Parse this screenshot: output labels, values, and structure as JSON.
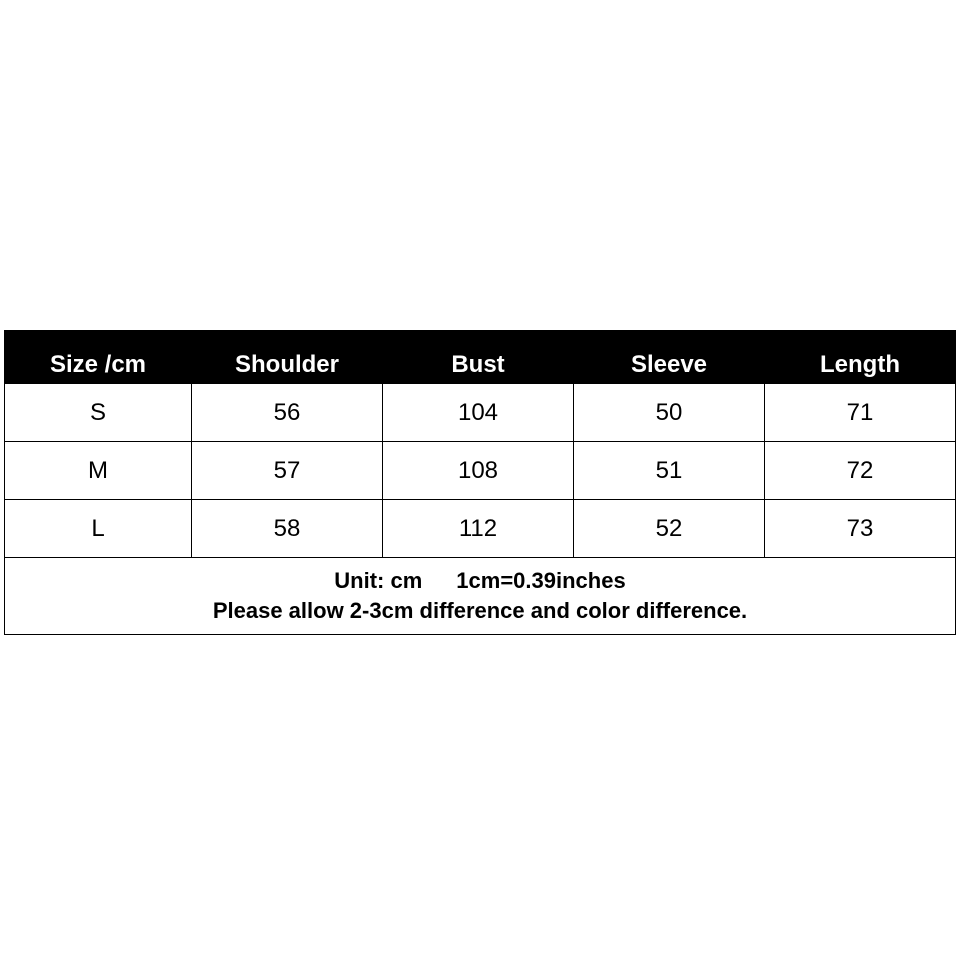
{
  "table": {
    "headers": [
      "Size /cm",
      "Shoulder",
      "Bust",
      "Sleeve",
      "Length"
    ],
    "rows": [
      [
        "S",
        "56",
        "104",
        "50",
        "71"
      ],
      [
        "M",
        "57",
        "108",
        "51",
        "72"
      ],
      [
        "L",
        "58",
        "112",
        "52",
        "73"
      ]
    ],
    "footer": {
      "unit": "Unit: cm",
      "conversion": "1cm=0.39inches",
      "note": "Please allow 2-3cm difference and color difference."
    }
  }
}
